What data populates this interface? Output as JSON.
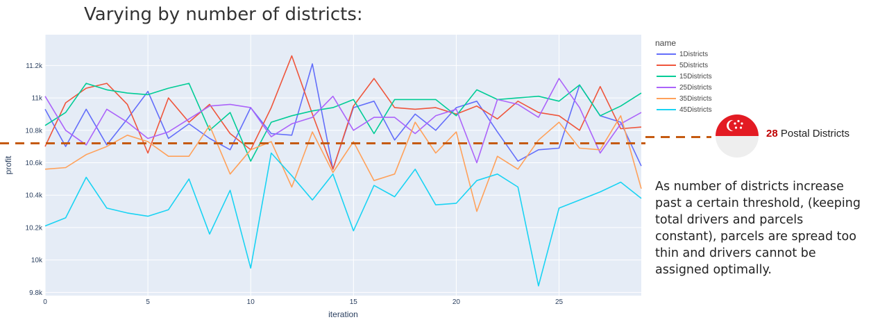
{
  "slide_title": "Varying by number of districts:",
  "chart_data": {
    "type": "line",
    "xlabel": "iteration",
    "ylabel": "profit",
    "xlim": [
      0,
      29
    ],
    "ylim": [
      9780,
      11390
    ],
    "xticks": [
      0,
      5,
      10,
      15,
      20,
      25
    ],
    "yticks": [
      {
        "value": 9800,
        "label": "9.8k"
      },
      {
        "value": 10000,
        "label": "10k"
      },
      {
        "value": 10200,
        "label": "10.2k"
      },
      {
        "value": 10400,
        "label": "10.4k"
      },
      {
        "value": 10600,
        "label": "10.6k"
      },
      {
        "value": 10800,
        "label": "10.8k"
      },
      {
        "value": 11000,
        "label": "11k"
      },
      {
        "value": 11200,
        "label": "11.2k"
      }
    ],
    "legend_title": "name",
    "legend_position": "right",
    "grid": true,
    "x": [
      0,
      1,
      2,
      3,
      4,
      5,
      6,
      7,
      8,
      9,
      10,
      11,
      12,
      13,
      14,
      15,
      16,
      17,
      18,
      19,
      20,
      21,
      22,
      23,
      24,
      25,
      26,
      27,
      28,
      29
    ],
    "series": [
      {
        "name": "1Districts",
        "color": "#636efa",
        "values": [
          10930,
          10700,
          10930,
          10710,
          10870,
          11040,
          10750,
          10840,
          10750,
          10680,
          10940,
          10780,
          10770,
          11210,
          10560,
          10940,
          10980,
          10740,
          10900,
          10800,
          10940,
          10980,
          10790,
          10610,
          10680,
          10690,
          11080,
          10890,
          10850,
          10580
        ]
      },
      {
        "name": "5Districts",
        "color": "#ef553b",
        "values": [
          10700,
          10970,
          11060,
          11090,
          10960,
          10660,
          11000,
          10850,
          10960,
          10780,
          10680,
          10940,
          11260,
          10900,
          10560,
          10950,
          11120,
          10940,
          10930,
          10940,
          10900,
          10950,
          10870,
          10980,
          10910,
          10890,
          10800,
          11070,
          10810,
          10820
        ]
      },
      {
        "name": "15Districts",
        "color": "#00cc96",
        "values": [
          10830,
          10910,
          11090,
          11050,
          11030,
          11020,
          11060,
          11090,
          10800,
          10910,
          10610,
          10850,
          10890,
          10920,
          10940,
          10990,
          10780,
          10990,
          10990,
          10990,
          10890,
          11050,
          10990,
          11000,
          11010,
          10980,
          11080,
          10890,
          10950,
          11030
        ]
      },
      {
        "name": "25Districts",
        "color": "#ab63fa",
        "values": [
          11010,
          10800,
          10710,
          10930,
          10850,
          10750,
          10790,
          10870,
          10950,
          10960,
          10940,
          10760,
          10840,
          10880,
          11010,
          10800,
          10880,
          10880,
          10780,
          10890,
          10930,
          10600,
          10990,
          10960,
          10880,
          11120,
          10940,
          10660,
          10840,
          10910
        ]
      },
      {
        "name": "35Districts",
        "color": "#ffa15a",
        "values": [
          10560,
          10570,
          10650,
          10700,
          10770,
          10730,
          10640,
          10640,
          10830,
          10530,
          10680,
          10730,
          10450,
          10790,
          10540,
          10730,
          10490,
          10530,
          10850,
          10660,
          10790,
          10300,
          10640,
          10560,
          10740,
          10850,
          10690,
          10680,
          10890,
          10440
        ]
      },
      {
        "name": "45Districts",
        "color": "#19d3f3",
        "values": [
          10210,
          10260,
          10510,
          10320,
          10290,
          10270,
          10310,
          10500,
          10160,
          10430,
          9950,
          10660,
          10520,
          10370,
          10530,
          10180,
          10460,
          10390,
          10560,
          10340,
          10350,
          10490,
          10530,
          10450,
          9840,
          10320,
          10370,
          10420,
          10480,
          10380
        ]
      }
    ]
  },
  "reference_line": {
    "value": 10720,
    "color": "#c55a11"
  },
  "annotation": {
    "number": "28",
    "text": "Postal Districts"
  },
  "explanation": "As number of districts increase past a certain threshold, (keeping total drivers and parcels constant), parcels are spread too thin and drivers cannot be assigned optimally.",
  "colors": {
    "flag_red": "#e31b23",
    "flag_white": "#ffffff",
    "annotation_number": "#c00000",
    "plot_bg": "#e5ecf6"
  }
}
